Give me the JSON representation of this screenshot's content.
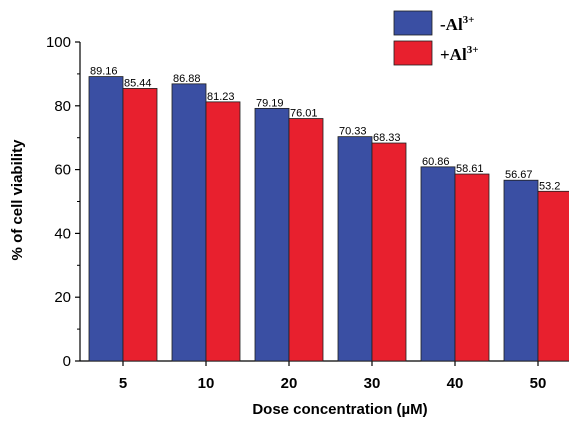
{
  "chart_data": {
    "type": "bar",
    "title": "",
    "xlabel": "Dose concentration (µM)",
    "ylabel": "% of cell viability",
    "ylim": [
      0,
      100
    ],
    "yticks": [
      0,
      20,
      40,
      60,
      80,
      100
    ],
    "categories": [
      "5",
      "10",
      "20",
      "30",
      "40",
      "50"
    ],
    "series": [
      {
        "name": "-Al",
        "name_sup": "3+",
        "color": "#3a4fa3",
        "values": [
          89.16,
          86.88,
          79.19,
          70.33,
          60.86,
          56.67
        ],
        "labels": [
          "89.16",
          "86.88",
          "79.19",
          "70.33",
          "60.86",
          "56.67"
        ]
      },
      {
        "name": "+Al",
        "name_sup": "3+",
        "color": "#e8202e",
        "values": [
          85.44,
          81.23,
          76.01,
          68.33,
          58.61,
          53.2
        ],
        "labels": [
          "85.44",
          "81.23",
          "76.01",
          "68.33",
          "58.61",
          "53.2"
        ]
      }
    ],
    "grid": false,
    "legend_position": "top-right"
  }
}
